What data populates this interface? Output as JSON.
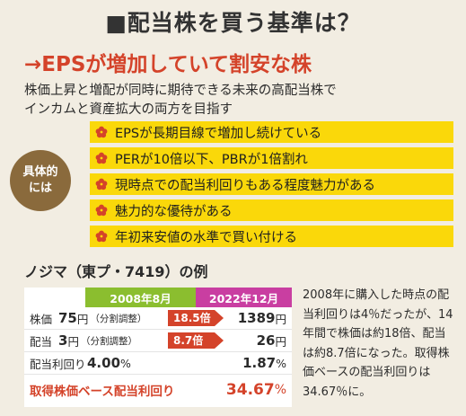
{
  "title": "■配当株を買う基準は？",
  "headline": "→EPSが増加していて割安な株",
  "intro_lines": [
    "株価上昇と増配が同時に期待できる未来の高配当株で",
    "インカムと資産拡大の両方を目指す"
  ],
  "badge": {
    "line1": "具体的",
    "line2": "には"
  },
  "criteria": [
    "EPSが長期目線で増加し続けている",
    "PERが10倍以下、PBRが1倍割れ",
    "現時点での配当利回りもある程度魅力がある",
    "魅力的な優待がある",
    "年初来安値の水準で買い付ける"
  ],
  "example_title": "ノジマ（東プ・7419）の例",
  "table": {
    "header_2008": "2008年8月",
    "header_2022": "2022年12月",
    "rows": [
      {
        "label": "株価",
        "v2008_num": "75",
        "v2008_unit": "円",
        "v2008_note": "（分割調整）",
        "arrow": "18.5倍",
        "v2022_num": "1389",
        "v2022_unit": "円"
      },
      {
        "label": "配当",
        "v2008_num": "3",
        "v2008_unit": "円",
        "v2008_note": "（分割調整）",
        "arrow": "8.7倍",
        "v2022_num": "26",
        "v2022_unit": "円"
      },
      {
        "label": "配当利回り",
        "v2008_num": "4.00",
        "v2008_unit": "%",
        "v2008_note": "",
        "arrow": "",
        "v2022_num": "1.87",
        "v2022_unit": "%"
      }
    ],
    "total_label": "取得株価ベース配当利回り",
    "total_num": "34.67",
    "total_unit": "%"
  },
  "side_text": "2008年に購入した時点の配当利回りは4％だったが、14年間で株価は約18倍、配当は約8.7倍になった。取得株価ベースの配当利回りは34.67％に。",
  "colors": {
    "accent_red": "#d4432a",
    "criteria_yellow": "#fad80a",
    "badge_brown": "#8a6a3c",
    "header_green": "#8bbe2f",
    "header_magenta": "#c93ea1",
    "background": "#f2ede2"
  },
  "icons": {
    "criteria_bullet": "flower-icon",
    "ratio": "arrow-right-icon"
  }
}
